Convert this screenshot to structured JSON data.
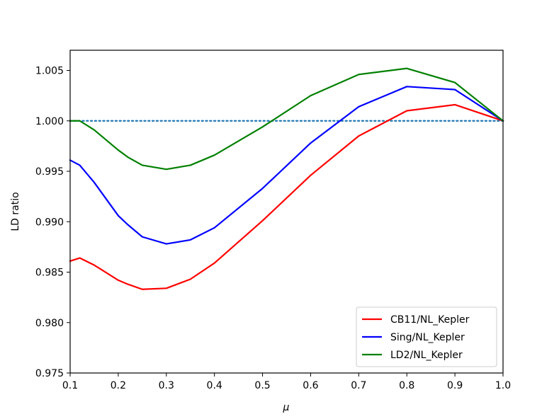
{
  "chart_data": {
    "type": "line",
    "title": "",
    "xlabel": "μ",
    "ylabel": "LD ratio",
    "xlim": [
      0.1,
      1.0
    ],
    "ylim": [
      0.975,
      1.007
    ],
    "grid": false,
    "legend_position": "bottom-right",
    "x_ticks": [
      "0.1",
      "0.2",
      "0.3",
      "0.4",
      "0.5",
      "0.6",
      "0.7",
      "0.8",
      "0.9",
      "1.0"
    ],
    "y_ticks": [
      "0.975",
      "0.980",
      "0.985",
      "0.990",
      "0.995",
      "1.000",
      "1.005"
    ],
    "reference_line": {
      "y": 1.0,
      "style": "dotted",
      "color": "#1f77b4"
    },
    "series": [
      {
        "name": "CB11/NL_Kepler",
        "color": "#ff0000",
        "x": [
          0.1,
          0.12,
          0.15,
          0.2,
          0.22,
          0.25,
          0.3,
          0.35,
          0.4,
          0.5,
          0.6,
          0.7,
          0.8,
          0.9,
          1.0
        ],
        "y": [
          0.9861,
          0.9864,
          0.9857,
          0.9842,
          0.9838,
          0.9833,
          0.9834,
          0.9843,
          0.9859,
          0.9901,
          0.9946,
          0.9985,
          1.001,
          1.0016,
          1.0
        ]
      },
      {
        "name": "Sing/NL_Kepler",
        "color": "#0000ff",
        "x": [
          0.1,
          0.12,
          0.15,
          0.2,
          0.22,
          0.25,
          0.3,
          0.35,
          0.4,
          0.5,
          0.6,
          0.7,
          0.8,
          0.9,
          1.0
        ],
        "y": [
          0.9961,
          0.9956,
          0.9939,
          0.9906,
          0.9897,
          0.9885,
          0.9878,
          0.9882,
          0.9894,
          0.9933,
          0.9978,
          1.0014,
          1.0034,
          1.0031,
          1.0
        ]
      },
      {
        "name": "LD2/NL_Kepler",
        "color": "#008000",
        "x": [
          0.1,
          0.12,
          0.15,
          0.2,
          0.22,
          0.25,
          0.3,
          0.35,
          0.4,
          0.5,
          0.6,
          0.7,
          0.8,
          0.9,
          1.0
        ],
        "y": [
          1.0,
          1.0,
          0.9991,
          0.9971,
          0.9964,
          0.9956,
          0.9952,
          0.9956,
          0.9966,
          0.9994,
          1.0025,
          1.0046,
          1.0052,
          1.0038,
          1.0
        ]
      }
    ]
  }
}
